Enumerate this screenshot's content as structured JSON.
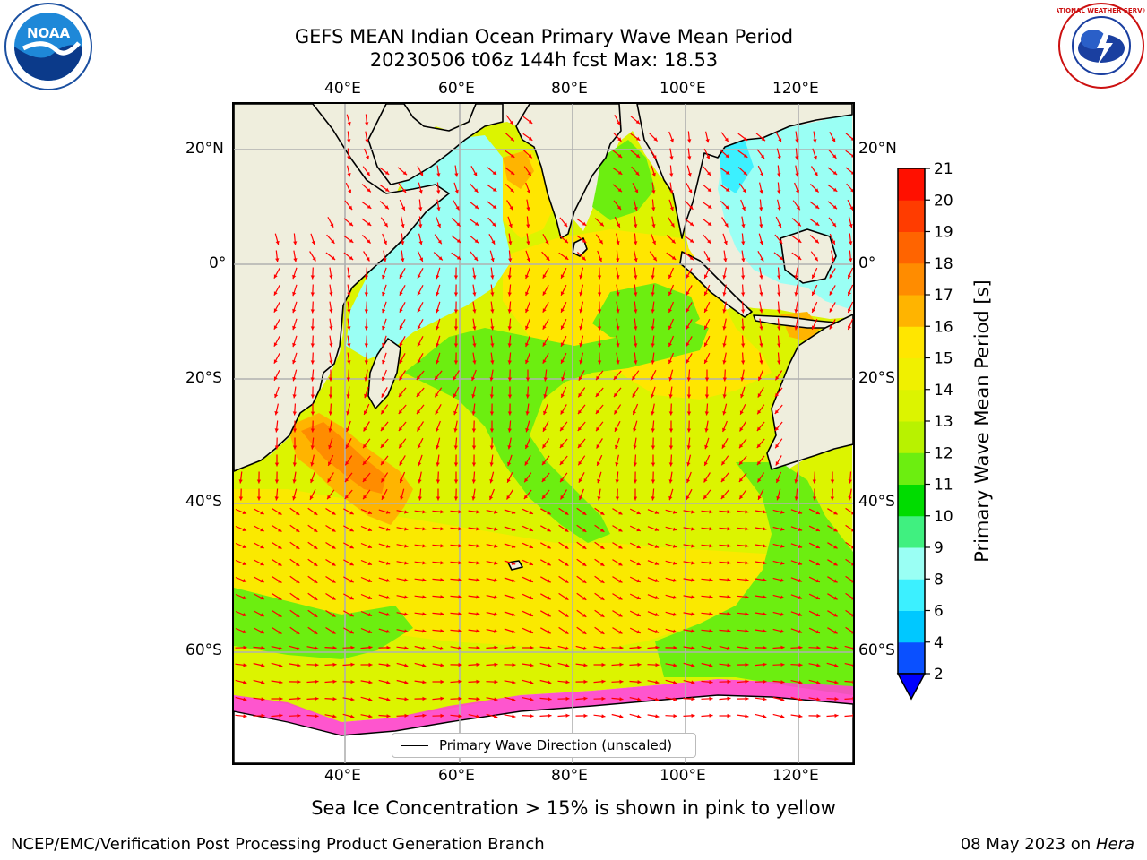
{
  "header": {
    "title_line1": "GEFS MEAN Indian Ocean Primary Wave Mean Period",
    "title_line2": "20230506 t06z 144h fcst   Max: 18.53"
  },
  "axes": {
    "lon_labels": [
      "40°E",
      "60°E",
      "80°E",
      "100°E",
      "120°E"
    ],
    "lat_labels": [
      "20°N",
      "0°",
      "20°S",
      "40°S",
      "60°S"
    ]
  },
  "legend": {
    "label": "Primary Wave Direction (unscaled)"
  },
  "colorbar": {
    "label": "Primary Wave Mean Period [s]",
    "ticks": [
      "2",
      "4",
      "6",
      "8",
      "9",
      "10",
      "11",
      "12",
      "13",
      "14",
      "15",
      "16",
      "17",
      "18",
      "19",
      "20",
      "21"
    ],
    "colors": [
      "#0a50ff",
      "#00c8ff",
      "#3cf0ff",
      "#9afff4",
      "#40f080",
      "#00dc00",
      "#6cee10",
      "#b8f200",
      "#dcf400",
      "#f0f000",
      "#ffe600",
      "#ffb400",
      "#ff8c00",
      "#ff6400",
      "#ff3c00",
      "#ff1000"
    ],
    "underflow_color": "#0000ff"
  },
  "footnote": "Sea Ice Concentration > 15% is shown in pink to yellow",
  "footer": {
    "left": "NCEP/EMC/Verification Post Processing Product Generation Branch",
    "right_date": "08 May 2023 on ",
    "right_host": "Hera"
  },
  "logos": {
    "left": "NOAA",
    "right": "NATIONAL WEATHER SERVICE"
  },
  "colors": {
    "arrow": "#ff0000",
    "land": "#efeedd",
    "ice": "#ff44cc",
    "grid": "#b0b0b0"
  }
}
